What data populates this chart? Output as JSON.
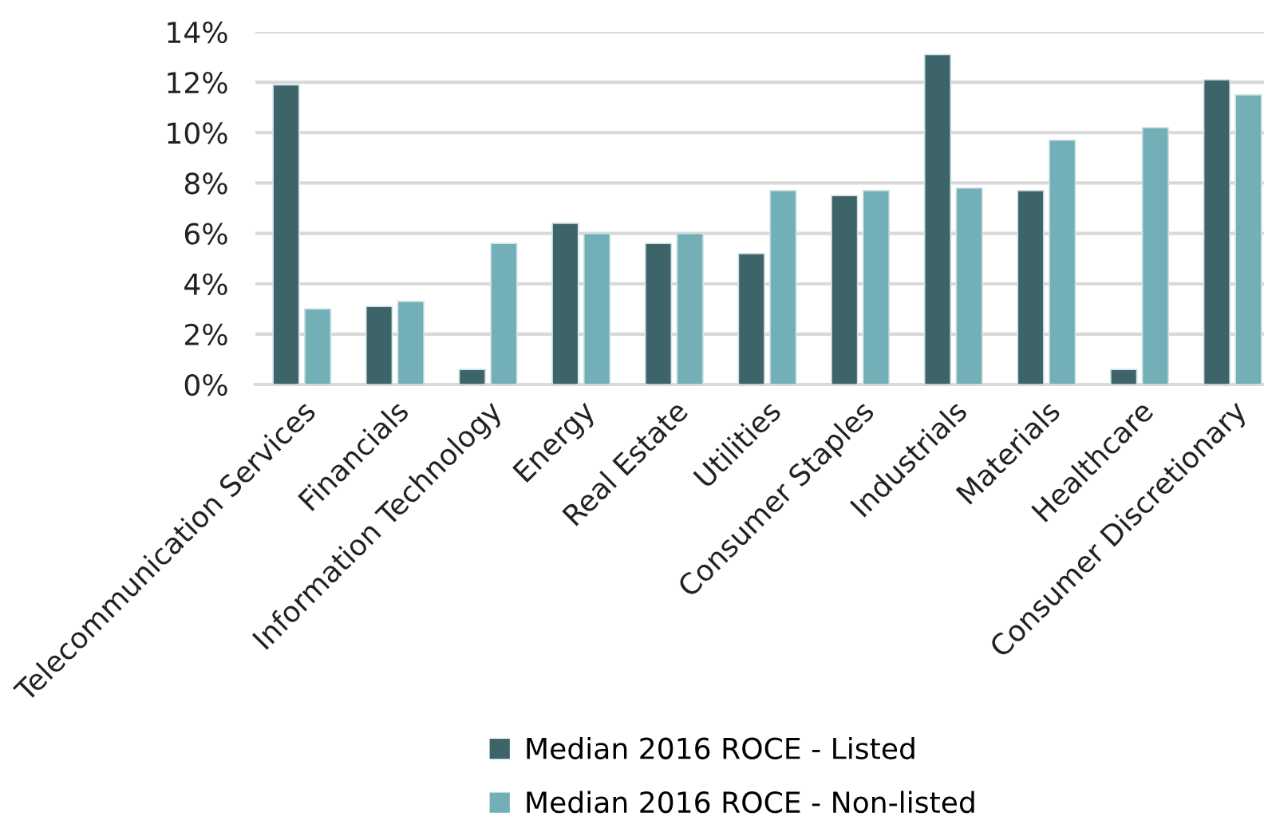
{
  "chart_data": {
    "type": "bar",
    "categories": [
      "Telecommunication Services",
      "Financials",
      "Information Technology",
      "Energy",
      "Real Estate",
      "Utilities",
      "Consumer Staples",
      "Industrials",
      "Materials",
      "Healthcare",
      "Consumer Discretionary"
    ],
    "series": [
      {
        "name": "Median 2016 ROCE - Listed",
        "color": "#3d6469",
        "values": [
          11.9,
          3.1,
          0.6,
          6.4,
          5.6,
          5.2,
          7.5,
          13.1,
          7.7,
          0.6,
          12.1
        ]
      },
      {
        "name": "Median 2016 ROCE - Non-listed",
        "color": "#72afb6",
        "values": [
          3.0,
          3.3,
          5.6,
          6.0,
          6.0,
          7.7,
          7.7,
          7.8,
          9.7,
          10.2,
          11.5
        ]
      }
    ],
    "ylim": [
      0,
      14
    ],
    "yticks": [
      {
        "value": 0,
        "label": "0%"
      },
      {
        "value": 2,
        "label": "2%"
      },
      {
        "value": 4,
        "label": "4%"
      },
      {
        "value": 6,
        "label": "6%"
      },
      {
        "value": 8,
        "label": "8%"
      },
      {
        "value": 10,
        "label": "10%"
      },
      {
        "value": 12,
        "label": "12%"
      },
      {
        "value": 14,
        "label": "14%"
      }
    ],
    "grid": "y",
    "legend": "bottom"
  }
}
